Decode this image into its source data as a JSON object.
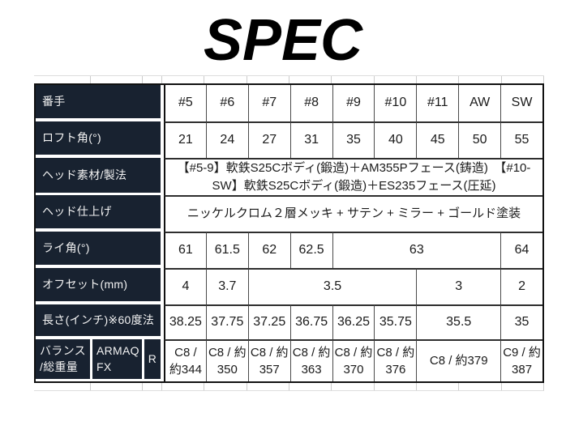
{
  "title": "SPEC",
  "colors": {
    "label_bg": "#182230",
    "label_text": "#f2f2f2",
    "outer_border": "#111111",
    "cell_border": "#4a4a4a",
    "row_border": "#2e2e2e",
    "spacer_line": "#cccccc",
    "data_text": "#1a1a1a"
  },
  "spec_table": {
    "rows": [
      {
        "label": "番手",
        "cells": [
          "#5",
          "#6",
          "#7",
          "#8",
          "#9",
          "#10",
          "#11",
          "AW",
          "SW"
        ]
      },
      {
        "label": "ロフト角(°)",
        "cells": [
          "21",
          "24",
          "27",
          "31",
          "35",
          "40",
          "45",
          "50",
          "55"
        ]
      },
      {
        "label": "ヘッド素材/製法",
        "cells": [
          "【#5-9】軟鉄S25Cボディ(鍛造)＋AM355Pフェース(鋳造)　【#10-SW】軟鉄S25Cボディ(鍛造)＋ES235フェース(圧延)"
        ]
      },
      {
        "label": "ヘッド仕上げ",
        "cells": [
          "ニッケルクロム２層メッキ + サテン + ミラー + ゴールド塗装"
        ]
      },
      {
        "label": "ライ角(°)",
        "cells": [
          "61",
          "61.5",
          "62",
          "62.5",
          "63",
          "64"
        ]
      },
      {
        "label": "オフセット(mm)",
        "cells": [
          "4",
          "3.7",
          "3.5",
          "3",
          "2"
        ]
      },
      {
        "label": "長さ(インチ)※60度法",
        "cells": [
          "38.25",
          "37.75",
          "37.25",
          "36.75",
          "36.25",
          "35.75",
          "35.5",
          "35"
        ]
      },
      {
        "label_parts": [
          "バランス\n/総重量",
          "ARMAQ\nFX",
          "R"
        ],
        "cells": [
          "C8 / 約344",
          "C8 / 約350",
          "C8 / 約357",
          "C8 / 約363",
          "C8 / 約370",
          "C8 / 約376",
          "C8 / 約379",
          "C9 / 約387"
        ]
      }
    ]
  }
}
